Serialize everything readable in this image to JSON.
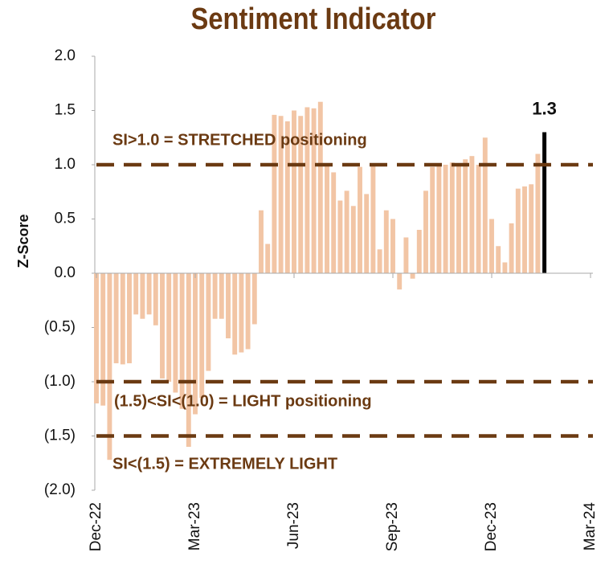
{
  "chart_data": {
    "type": "bar",
    "title": "Sentiment Indicator",
    "ylabel": "Z-Score",
    "categories": [
      "Dec-22",
      null,
      null,
      null,
      null,
      null,
      null,
      null,
      null,
      null,
      null,
      null,
      null,
      null,
      null,
      "Mar-23",
      null,
      null,
      null,
      null,
      null,
      null,
      null,
      null,
      null,
      null,
      null,
      null,
      null,
      null,
      "Jun-23",
      null,
      null,
      null,
      null,
      null,
      null,
      null,
      null,
      null,
      null,
      null,
      null,
      null,
      null,
      "Sep-23",
      null,
      null,
      null,
      null,
      null,
      null,
      null,
      null,
      null,
      null,
      null,
      null,
      null,
      null,
      "Dec-23",
      null,
      null,
      null,
      null,
      null,
      null,
      null,
      null,
      null,
      null,
      null,
      null,
      null,
      null,
      "Mar-24"
    ],
    "values": [
      -1.2,
      -1.22,
      -1.72,
      -0.83,
      -0.84,
      -0.83,
      -0.38,
      -0.42,
      -0.38,
      -0.48,
      -0.97,
      -1.0,
      -1.1,
      -1.25,
      -1.6,
      -1.3,
      -1.15,
      -0.9,
      -0.42,
      -0.42,
      -0.6,
      -0.75,
      -0.73,
      -0.7,
      -0.47,
      0.58,
      0.27,
      1.46,
      1.45,
      1.4,
      1.5,
      1.45,
      1.53,
      1.52,
      1.58,
      1.0,
      0.93,
      0.67,
      0.76,
      0.62,
      0.98,
      0.73,
      1.0,
      0.22,
      0.58,
      0.5,
      -0.15,
      0.33,
      -0.05,
      0.4,
      0.76,
      0.98,
      1.01,
      1.0,
      1.02,
      1.0,
      1.05,
      1.08,
      1.0,
      1.25,
      0.5,
      0.25,
      0.1,
      0.46,
      0.78,
      0.8,
      0.82,
      1.1,
      1.3,
      null,
      null,
      null,
      null,
      null,
      null,
      null
    ],
    "value_labels": [
      null,
      null,
      null,
      null,
      null,
      null,
      null,
      null,
      null,
      null,
      null,
      null,
      null,
      null,
      null,
      null,
      null,
      null,
      null,
      null,
      null,
      null,
      null,
      null,
      null,
      null,
      null,
      null,
      null,
      null,
      null,
      null,
      null,
      null,
      null,
      null,
      null,
      null,
      null,
      null,
      null,
      null,
      null,
      null,
      null,
      null,
      null,
      null,
      null,
      null,
      null,
      null,
      null,
      null,
      null,
      null,
      null,
      null,
      null,
      null,
      null,
      null,
      null,
      null,
      null,
      null,
      null,
      null,
      "1.3",
      null,
      null,
      null,
      null,
      null,
      null,
      null
    ],
    "color": "#f2c5a5",
    "label_color": "#000000",
    "ylim": [
      -2,
      2
    ],
    "yticks": [
      {
        "value": -2,
        "label": "(2.0)"
      },
      {
        "value": -1.5,
        "label": "(1.5)"
      },
      {
        "value": -1,
        "label": "(1.0)"
      },
      {
        "value": -0.5,
        "label": "(0.5)"
      },
      {
        "value": 0,
        "label": "0.0"
      },
      {
        "value": 0.5,
        "label": "0.5"
      },
      {
        "value": 1,
        "label": "1.0"
      },
      {
        "value": 1.5,
        "label": "1.5"
      },
      {
        "value": 2,
        "label": "2.0"
      }
    ],
    "reference_lines": [
      {
        "value": 1,
        "label": "SI>1.0 = STRETCHED positioning"
      },
      {
        "value": -1,
        "label": "(1.5)<SI<(1.0) = LIGHT positioning"
      },
      {
        "value": -1.5,
        "label": "SI<(1.5) = EXTREMELY LIGHT"
      }
    ],
    "reference_color": "#6b3a12"
  }
}
